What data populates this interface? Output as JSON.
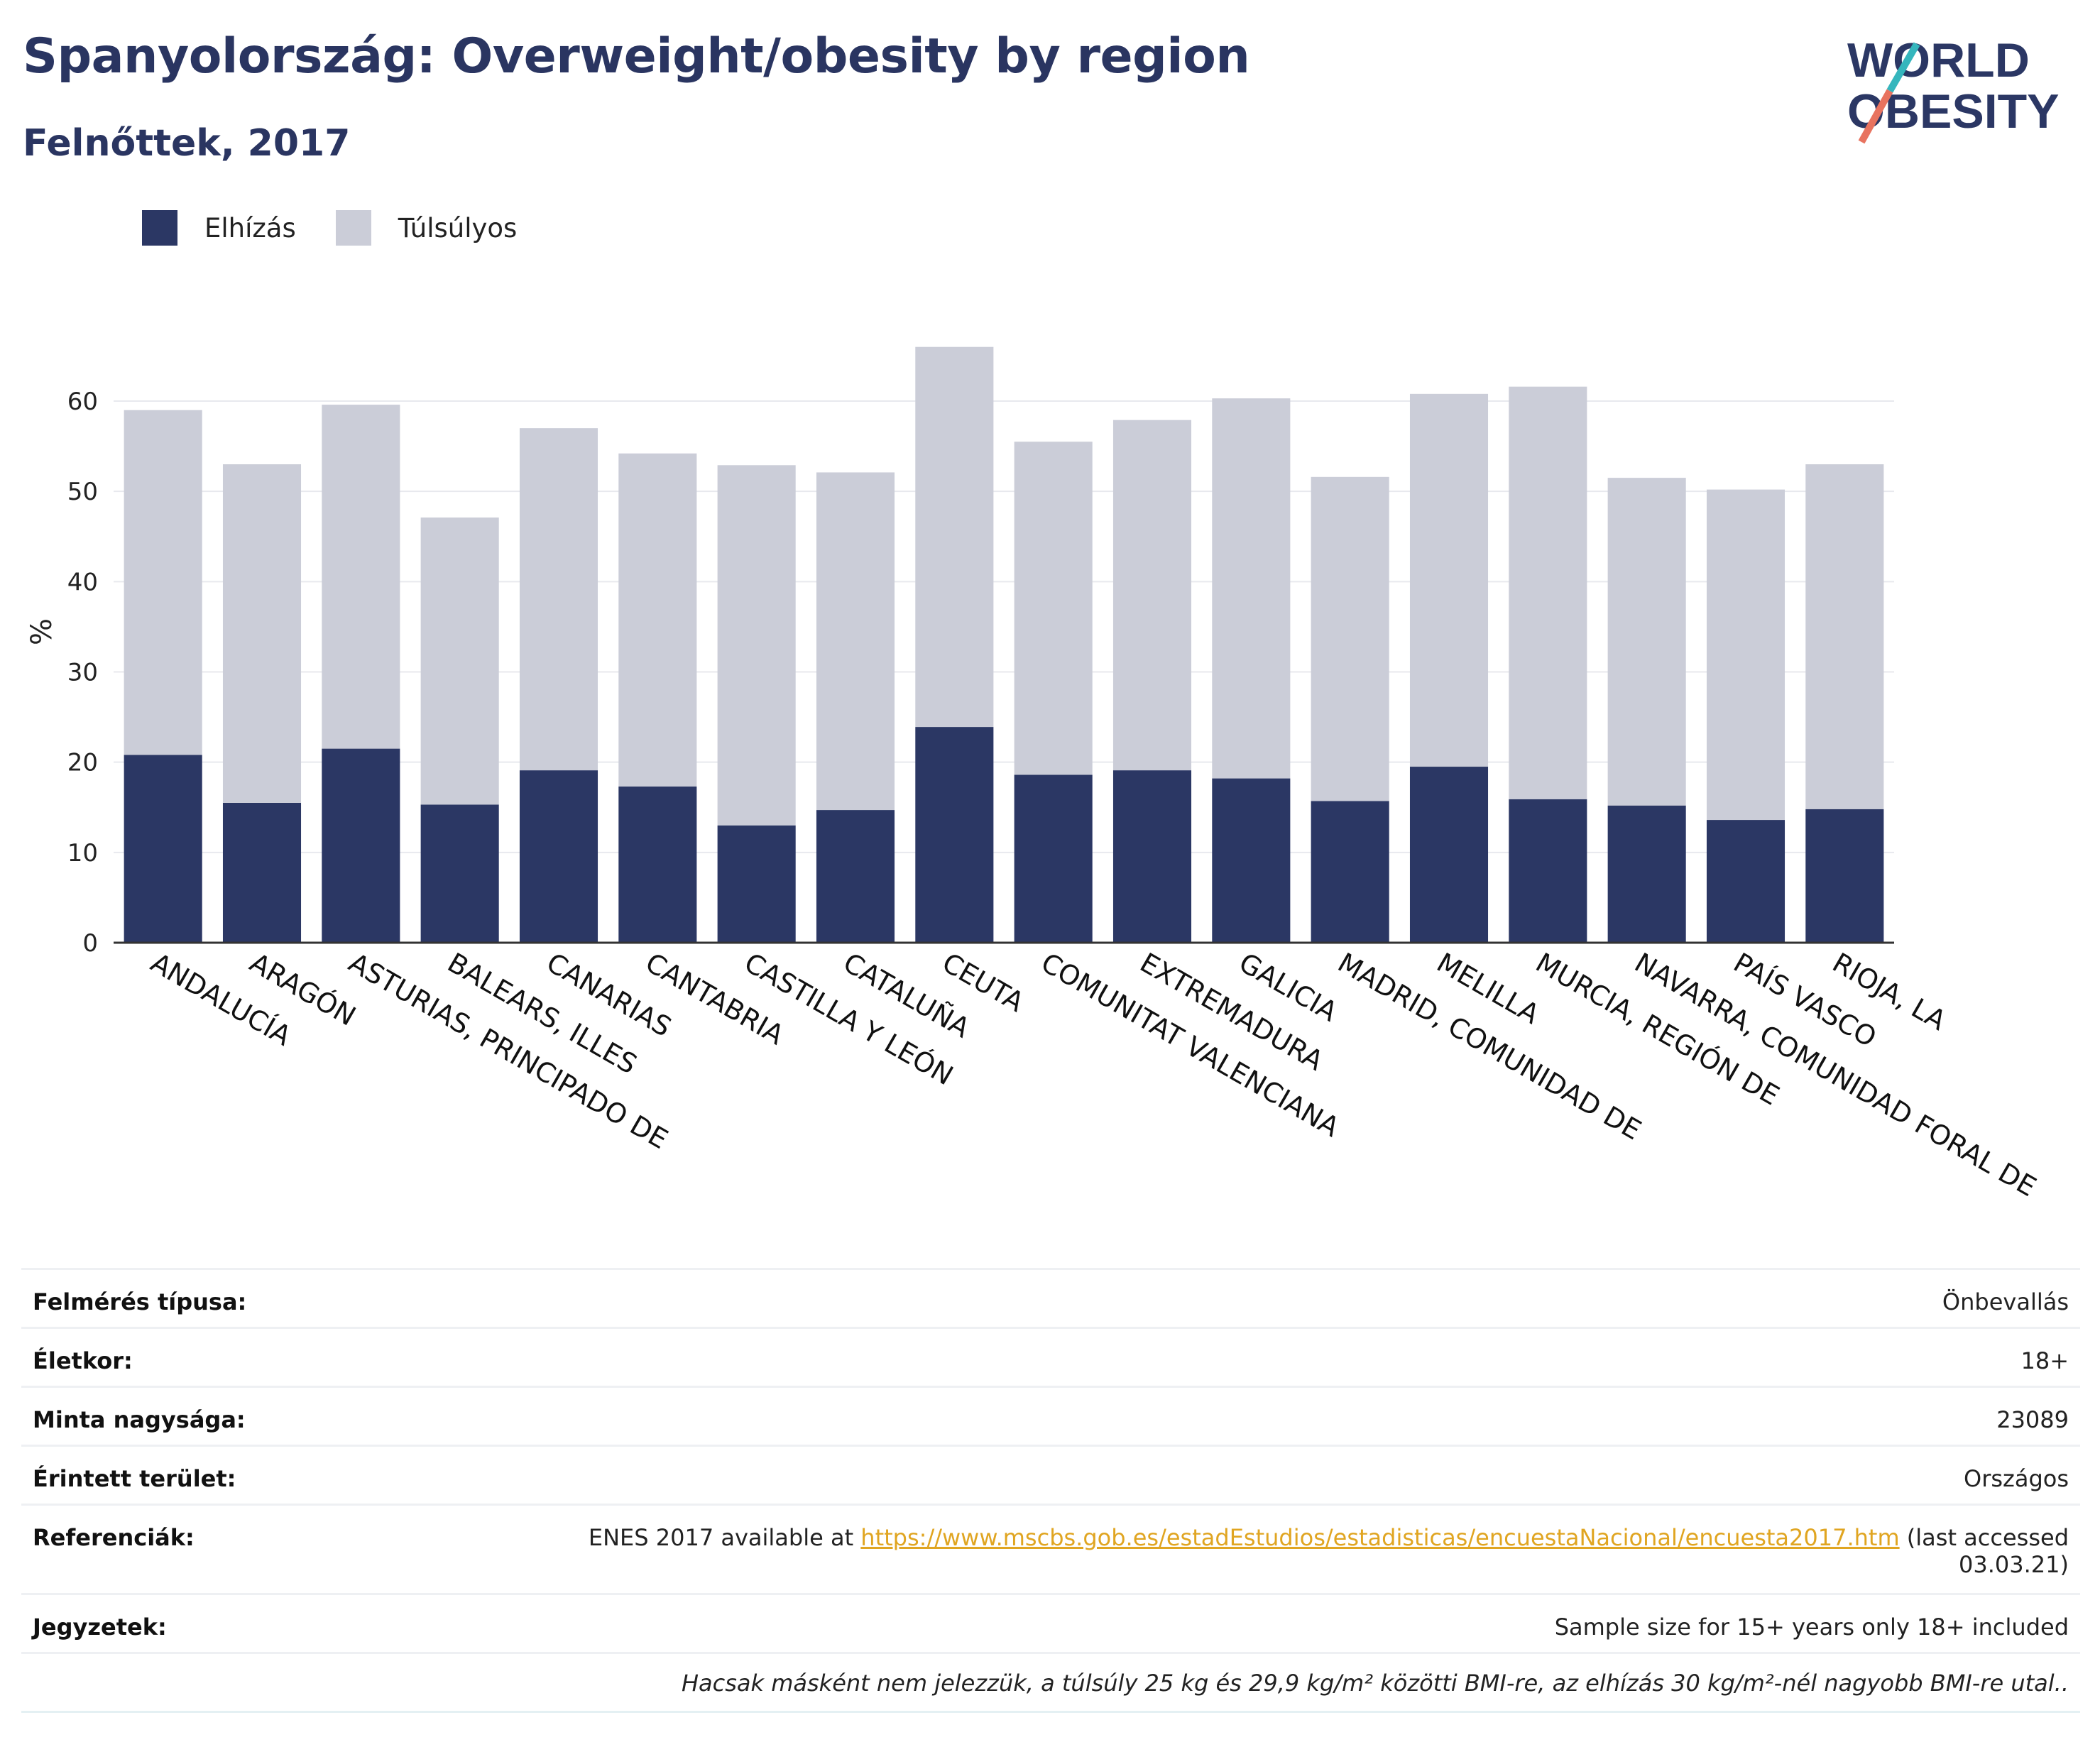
{
  "header": {
    "title": "Spanyolország: Overweight/obesity by region",
    "subtitle": "Felnőttek, 2017"
  },
  "logo": {
    "line1": "WORLD",
    "line2": "OBESITY"
  },
  "legend": [
    {
      "label": "Elhízás",
      "color": "#2b3764"
    },
    {
      "label": "Túlsúlyos",
      "color": "#cbcdd8"
    }
  ],
  "chart_data": {
    "type": "bar",
    "stacked": true,
    "ylabel": "%",
    "ylim": [
      0,
      70
    ],
    "yticks": [
      0,
      10,
      20,
      30,
      40,
      50,
      60
    ],
    "grid": true,
    "legend_position": "top-left",
    "categories": [
      "ANDALUCÍA",
      "ARAGÓN",
      "ASTURIAS, PRINCIPADO DE",
      "BALEARS, ILLES",
      "CANARIAS",
      "CANTABRIA",
      "CASTILLA Y LEÓN",
      "CATALUÑA",
      "CEUTA",
      "COMUNITAT VALENCIANA",
      "EXTREMADURA",
      "GALICIA",
      "MADRID, COMUNIDAD DE",
      "MELILLA",
      "MURCIA, REGIÓN DE",
      "NAVARRA, COMUNIDAD FORAL DE",
      "PAÍS VASCO",
      "RIOJA, LA"
    ],
    "series": [
      {
        "name": "Elhízás",
        "color": "#2b3764",
        "values": [
          20.8,
          15.5,
          21.5,
          15.3,
          19.1,
          17.3,
          13.0,
          14.7,
          23.9,
          18.6,
          19.1,
          18.2,
          15.7,
          19.5,
          15.9,
          15.2,
          13.6,
          14.8
        ]
      },
      {
        "name": "Túlsúlyos",
        "color": "#cbcdd8",
        "values": [
          38.2,
          37.5,
          38.1,
          31.8,
          37.9,
          36.9,
          39.9,
          37.4,
          42.1,
          36.9,
          38.8,
          42.1,
          35.9,
          41.3,
          45.7,
          36.3,
          36.6,
          38.2
        ]
      }
    ]
  },
  "meta": {
    "survey_type": {
      "label": "Felmérés típusa:",
      "value": "Önbevallás"
    },
    "age": {
      "label": "Életkor:",
      "value": "18+"
    },
    "sample_size": {
      "label": "Minta nagysága:",
      "value": "23089"
    },
    "area": {
      "label": "Érintett terület:",
      "value": "Országos"
    },
    "references": {
      "label": "Referenciák:",
      "prefix": "ENES 2017 available at ",
      "link": "https://www.mscbs.gob.es/estadEstudios/estadisticas/encuestaNacional/encuesta2017.htm",
      "suffix_1": " (last accessed",
      "suffix_2": "03.03.21)"
    },
    "notes": {
      "label": "Jegyzetek:",
      "value": "Sample size for 15+ years only 18+ included"
    },
    "footnote": "Hacsak másként nem jelezzük, a túlsúly 25 kg és 29,9 kg/m² közötti BMI-re, az elhízás 30 kg/m²-nél nagyobb BMI-re utal.."
  }
}
